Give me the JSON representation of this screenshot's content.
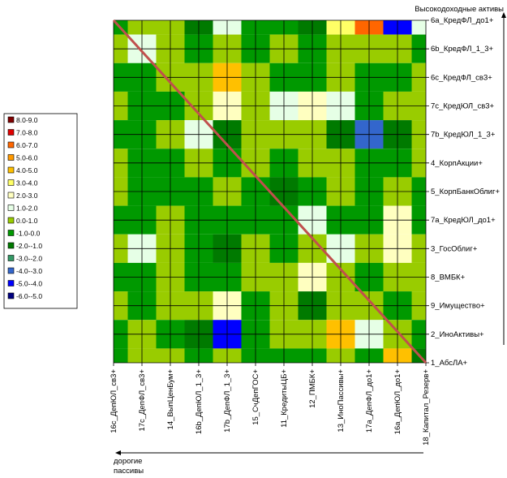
{
  "chart_data": {
    "type": "contour",
    "y_axis_note": "Высокодоходные активы",
    "x_axis_note": [
      "дорогие",
      "пассивы"
    ],
    "x_categories": [
      "16c_ДепЮЛ_св3+",
      "17c_ДепФЛ_св3+",
      "14_ВыпЦенБум+",
      "16b_ДепЮЛ_1_3+",
      "17b_ДепФЛ_1_3+",
      "15_СчДепГОС+",
      "11_КредитыЦБ+",
      "12_ПМБК+",
      "13_ИноПассивы+",
      "17a_ДепФЛ_до1+",
      "16a_ДепЮЛ_до1+",
      "18_Капитал_Резерв+"
    ],
    "y_categories": [
      "6a_КредФЛ_до1+",
      "6b_КредФЛ_1_3+",
      "6c_КредФЛ_св3+",
      "7c_КредЮЛ_св3+",
      "7b_КредЮЛ_1_3+",
      "4_КорпАкции+",
      "5_КорпБанкОблиг+",
      "7a_КредЮЛ_до1+",
      "3_ГосОблиг+",
      "8_ВМБК+",
      "9_Имущество+",
      "2_ИноАктивы+",
      "1_АбсЛА+"
    ],
    "z": [
      [
        -0.5,
        0.5,
        0.5,
        -1.5,
        1.5,
        -0.5,
        -0.5,
        -1.5,
        3.5,
        6.5,
        -4.5,
        1.5
      ],
      [
        0.5,
        1.5,
        0.5,
        -0.5,
        0.5,
        -0.5,
        0.5,
        -0.5,
        0.5,
        0.5,
        0.5,
        -0.5
      ],
      [
        -0.5,
        -0.5,
        0.5,
        0.5,
        4.5,
        0.5,
        -0.5,
        -0.5,
        0.5,
        -0.5,
        -0.5,
        0.5
      ],
      [
        0.5,
        -0.5,
        -0.5,
        0.5,
        2.5,
        0.5,
        1.5,
        2.5,
        1.5,
        -0.5,
        0.5,
        0.5
      ],
      [
        -0.5,
        -0.5,
        0.5,
        1.5,
        -1.5,
        0.5,
        0.5,
        0.5,
        -1.5,
        -3.5,
        -1.5,
        0.5
      ],
      [
        0.5,
        -0.5,
        -0.5,
        0.5,
        -0.5,
        0.5,
        -0.5,
        0.5,
        0.5,
        -0.5,
        -0.5,
        0.5
      ],
      [
        0.5,
        -0.5,
        -0.5,
        -0.5,
        0.5,
        -0.5,
        -1.5,
        -0.5,
        0.5,
        -0.5,
        0.5,
        -0.5
      ],
      [
        -0.5,
        -0.5,
        0.5,
        -0.5,
        -0.5,
        -0.5,
        -0.5,
        1.5,
        -0.5,
        -0.5,
        2.5,
        -0.5
      ],
      [
        0.5,
        1.5,
        0.5,
        -0.5,
        -1.5,
        0.5,
        -0.5,
        0.5,
        1.5,
        0.5,
        2.5,
        0.5
      ],
      [
        -0.5,
        -0.5,
        0.5,
        -0.5,
        -0.5,
        0.5,
        0.5,
        2.5,
        0.5,
        -0.5,
        0.5,
        0.5
      ],
      [
        0.5,
        -0.5,
        0.5,
        0.5,
        2.5,
        -0.5,
        0.5,
        -1.5,
        0.5,
        0.5,
        -0.5,
        0.5
      ],
      [
        -0.5,
        0.5,
        -0.5,
        -1.5,
        -4.5,
        -0.5,
        0.5,
        0.5,
        4.5,
        1.5,
        0.5,
        -0.5
      ],
      [
        -0.5,
        0.5,
        0.5,
        -0.5,
        0.5,
        -0.5,
        -0.5,
        -0.5,
        0.5,
        -0.5,
        4.5,
        -1.5
      ]
    ],
    "bands": [
      {
        "label": "8.0-9.0",
        "from": 8,
        "to": 9,
        "color": "#800000"
      },
      {
        "label": "7.0-8.0",
        "from": 7,
        "to": 8,
        "color": "#e00000"
      },
      {
        "label": "6.0-7.0",
        "from": 6,
        "to": 7,
        "color": "#ff6600"
      },
      {
        "label": "5.0-6.0",
        "from": 5,
        "to": 6,
        "color": "#ff9900"
      },
      {
        "label": "4.0-5.0",
        "from": 4,
        "to": 5,
        "color": "#ffc000"
      },
      {
        "label": "3.0-4.0",
        "from": 3,
        "to": 4,
        "color": "#ffff66"
      },
      {
        "label": "2.0-3.0",
        "from": 2,
        "to": 3,
        "color": "#ffffc0"
      },
      {
        "label": "1.0-2.0",
        "from": 1,
        "to": 2,
        "color": "#e6ffe6"
      },
      {
        "label": "0.0-1.0",
        "from": 0,
        "to": 1,
        "color": "#99cc00"
      },
      {
        "label": "-1.0-0.0",
        "from": -1,
        "to": 0,
        "color": "#009900"
      },
      {
        "label": "-2.0--1.0",
        "from": -2,
        "to": -1,
        "color": "#007a00"
      },
      {
        "label": "-3.0--2.0",
        "from": -3,
        "to": -2,
        "color": "#339966"
      },
      {
        "label": "-4.0--3.0",
        "from": -4,
        "to": -3,
        "color": "#3366cc"
      },
      {
        "label": "-5.0--4.0",
        "from": -5,
        "to": -4,
        "color": "#0000ff"
      },
      {
        "label": "-6.0--5.0",
        "from": -6,
        "to": -5,
        "color": "#000080"
      }
    ]
  }
}
